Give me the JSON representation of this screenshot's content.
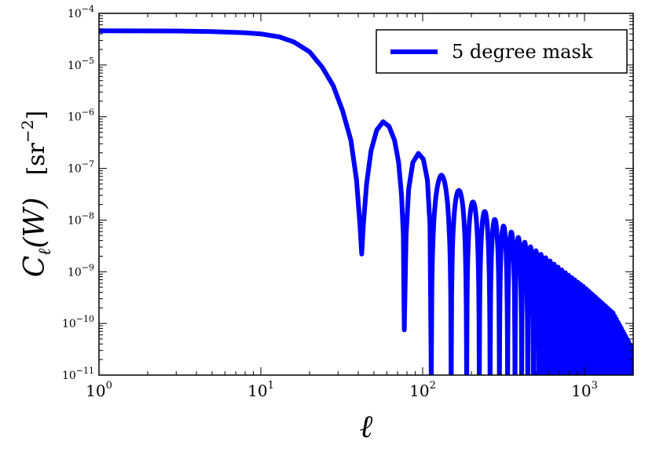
{
  "chart_data": {
    "type": "line",
    "xscale": "log",
    "yscale": "log",
    "xlim": [
      1,
      2000
    ],
    "ylim": [
      1e-11,
      0.0001
    ],
    "xlabel": "ℓ",
    "ylabel": "C_ℓ(W)   [sr^-2]",
    "x_ticks": [
      {
        "base": "10",
        "exp": "0",
        "value": 1
      },
      {
        "base": "10",
        "exp": "1",
        "value": 10
      },
      {
        "base": "10",
        "exp": "2",
        "value": 100
      },
      {
        "base": "10",
        "exp": "3",
        "value": 1000
      }
    ],
    "y_ticks": [
      {
        "base": "10",
        "exp": "−11",
        "value": 1e-11
      },
      {
        "base": "10",
        "exp": "−10",
        "value": 1e-10
      },
      {
        "base": "10",
        "exp": "−9",
        "value": 1e-09
      },
      {
        "base": "10",
        "exp": "−8",
        "value": 1e-08
      },
      {
        "base": "10",
        "exp": "−7",
        "value": 1e-07
      },
      {
        "base": "10",
        "exp": "−6",
        "value": 1e-06
      },
      {
        "base": "10",
        "exp": "−5",
        "value": 1e-05
      },
      {
        "base": "10",
        "exp": "−4",
        "value": 0.0001
      }
    ],
    "legend": {
      "position": "top-right",
      "entries": [
        "5 degree mask"
      ]
    },
    "series": [
      {
        "name": "5 degree mask",
        "color": "#0000ff",
        "points": [
          [
            1,
            4.6e-05
          ],
          [
            3,
            4.55e-05
          ],
          [
            5,
            4.45e-05
          ],
          [
            8,
            4.2e-05
          ],
          [
            10,
            4e-05
          ],
          [
            13,
            3.5e-05
          ],
          [
            16,
            2.8e-05
          ],
          [
            20,
            1.8e-05
          ],
          [
            24,
            9e-06
          ],
          [
            28,
            4e-06
          ],
          [
            32,
            1.3e-06
          ],
          [
            36,
            3.5e-07
          ],
          [
            39,
            6e-08
          ],
          [
            41,
            8e-09
          ],
          [
            42,
            2.2e-09
          ],
          [
            43,
            8e-09
          ],
          [
            45,
            5e-08
          ],
          [
            48,
            2.2e-07
          ],
          [
            52,
            5.5e-07
          ],
          [
            57,
            8e-07
          ],
          [
            62,
            6.5e-07
          ],
          [
            67,
            3.5e-07
          ],
          [
            71,
            1.3e-07
          ],
          [
            74,
            3e-08
          ],
          [
            76,
            5e-09
          ],
          [
            77,
            7.5e-11
          ],
          [
            79,
            5e-09
          ],
          [
            82,
            4e-08
          ],
          [
            87,
            1.3e-07
          ],
          [
            94,
            1.95e-07
          ],
          [
            101,
            1.5e-07
          ],
          [
            107,
            6e-08
          ],
          [
            111,
            8e-09
          ],
          [
            113,
            1e-11
          ]
        ],
        "peaks": [
          {
            "x": 130,
            "y": 7.5e-08
          },
          {
            "x": 167,
            "y": 3.8e-08
          },
          {
            "x": 203,
            "y": 2.3e-08
          },
          {
            "x": 240,
            "y": 1.5e-08
          },
          {
            "x": 277,
            "y": 1.05e-08
          },
          {
            "x": 314,
            "y": 7.8e-09
          },
          {
            "x": 350,
            "y": 6e-09
          },
          {
            "x": 387,
            "y": 4.7e-09
          },
          {
            "x": 424,
            "y": 3.8e-09
          },
          {
            "x": 460,
            "y": 3.1e-09
          },
          {
            "x": 600,
            "y": 1.7e-09
          },
          {
            "x": 800,
            "y": 8.5e-10
          },
          {
            "x": 1000,
            "y": 5e-10
          },
          {
            "x": 1500,
            "y": 1.6e-10
          },
          {
            "x": 2000,
            "y": 3e-11
          }
        ],
        "minima": [
          {
            "x": 113,
            "y": 1e-11
          },
          {
            "x": 150,
            "y": 1e-11
          },
          {
            "x": 186,
            "y": 1e-11
          },
          {
            "x": 222,
            "y": 1e-11
          }
        ],
        "oscillation_period_l": 37
      }
    ]
  }
}
